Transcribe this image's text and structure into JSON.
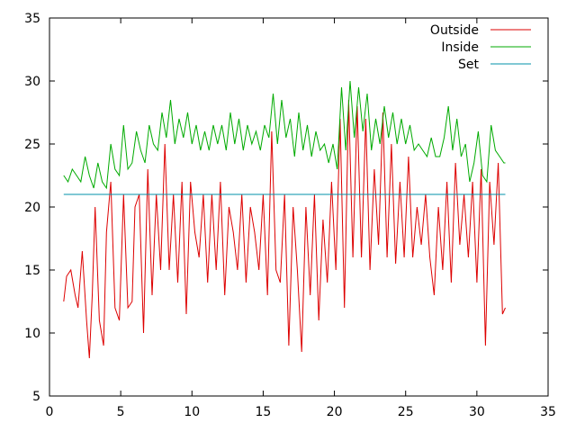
{
  "chart_data": {
    "type": "line",
    "title": "",
    "xlabel": "",
    "ylabel": "",
    "xlim": [
      0,
      35
    ],
    "ylim": [
      5,
      35
    ],
    "xticks": [
      0,
      5,
      10,
      15,
      20,
      25,
      30,
      35
    ],
    "yticks": [
      5,
      10,
      15,
      20,
      25,
      30,
      35
    ],
    "xtick_labels": [
      "0",
      "5",
      "10",
      "15",
      "20",
      "25",
      "30",
      "35"
    ],
    "ytick_labels": [
      "5",
      "10",
      "15",
      "20",
      "25",
      "30",
      "35"
    ],
    "grid": false,
    "legend_position": "top-right",
    "series": [
      {
        "name": "Outside",
        "color": "#dd0000",
        "x": [
          1.0,
          1.2,
          1.5,
          1.8,
          2.0,
          2.3,
          2.6,
          2.8,
          3.0,
          3.2,
          3.5,
          3.8,
          4.0,
          4.3,
          4.6,
          4.9,
          5.2,
          5.5,
          5.8,
          6.0,
          6.3,
          6.6,
          6.9,
          7.2,
          7.5,
          7.8,
          8.1,
          8.4,
          8.7,
          9.0,
          9.3,
          9.6,
          9.9,
          10.2,
          10.5,
          10.8,
          11.1,
          11.4,
          11.7,
          12.0,
          12.3,
          12.6,
          12.9,
          13.2,
          13.5,
          13.8,
          14.1,
          14.4,
          14.7,
          15.0,
          15.3,
          15.6,
          15.9,
          16.2,
          16.5,
          16.8,
          17.1,
          17.4,
          17.7,
          18.0,
          18.3,
          18.6,
          18.9,
          19.2,
          19.5,
          19.8,
          20.1,
          20.4,
          20.7,
          21.0,
          21.3,
          21.6,
          21.9,
          22.2,
          22.5,
          22.8,
          23.1,
          23.4,
          23.7,
          24.0,
          24.3,
          24.6,
          24.9,
          25.2,
          25.5,
          25.8,
          26.1,
          26.4,
          26.7,
          27.0,
          27.3,
          27.6,
          27.9,
          28.2,
          28.5,
          28.8,
          29.1,
          29.4,
          29.7,
          30.0,
          30.3,
          30.6,
          30.9,
          31.2,
          31.5,
          31.8,
          32.0
        ],
        "y": [
          12.5,
          14.5,
          15.0,
          13.0,
          12.0,
          16.5,
          11.0,
          8.0,
          13.0,
          20.0,
          11.0,
          9.0,
          18.0,
          22.0,
          12.0,
          11.0,
          21.0,
          12.0,
          12.5,
          20.0,
          21.0,
          10.0,
          23.0,
          13.0,
          21.0,
          15.0,
          25.0,
          15.0,
          21.0,
          14.0,
          22.0,
          11.5,
          22.0,
          18.0,
          16.0,
          21.0,
          14.0,
          21.0,
          15.0,
          22.0,
          13.0,
          20.0,
          18.0,
          15.0,
          21.0,
          14.0,
          20.0,
          18.0,
          15.0,
          21.0,
          13.0,
          26.0,
          15.0,
          14.0,
          21.0,
          9.0,
          20.0,
          15.0,
          8.5,
          20.0,
          13.0,
          21.0,
          11.0,
          19.0,
          14.0,
          22.0,
          15.0,
          27.0,
          12.0,
          28.5,
          16.0,
          28.0,
          16.0,
          27.0,
          15.0,
          23.0,
          17.0,
          27.5,
          16.0,
          25.0,
          15.5,
          22.0,
          16.0,
          24.0,
          16.0,
          20.0,
          17.0,
          21.0,
          16.0,
          13.0,
          20.0,
          15.0,
          22.0,
          14.0,
          23.5,
          17.0,
          21.0,
          16.0,
          22.0,
          14.0,
          23.0,
          9.0,
          22.0,
          17.0,
          23.5,
          11.5,
          12.0
        ],
        "points": [
          [
            1.0,
            12.5
          ],
          [
            32.0,
            12.0
          ]
        ]
      },
      {
        "name": "Inside",
        "color": "#00aa00",
        "x": [
          1.0,
          1.3,
          1.6,
          1.9,
          2.2,
          2.5,
          2.8,
          3.1,
          3.4,
          3.7,
          4.0,
          4.3,
          4.6,
          4.9,
          5.2,
          5.5,
          5.8,
          6.1,
          6.4,
          6.7,
          7.0,
          7.3,
          7.6,
          7.9,
          8.2,
          8.5,
          8.8,
          9.1,
          9.4,
          9.7,
          10.0,
          10.3,
          10.6,
          10.9,
          11.2,
          11.5,
          11.8,
          12.1,
          12.4,
          12.7,
          13.0,
          13.3,
          13.6,
          13.9,
          14.2,
          14.5,
          14.8,
          15.1,
          15.4,
          15.7,
          16.0,
          16.3,
          16.6,
          16.9,
          17.2,
          17.5,
          17.8,
          18.1,
          18.4,
          18.7,
          19.0,
          19.3,
          19.6,
          19.9,
          20.2,
          20.5,
          20.8,
          21.1,
          21.4,
          21.7,
          22.0,
          22.3,
          22.6,
          22.9,
          23.2,
          23.5,
          23.8,
          24.1,
          24.4,
          24.7,
          25.0,
          25.3,
          25.6,
          25.9,
          26.2,
          26.5,
          26.8,
          27.1,
          27.4,
          27.7,
          28.0,
          28.3,
          28.6,
          28.9,
          29.2,
          29.5,
          29.8,
          30.1,
          30.4,
          30.7,
          31.0,
          31.3,
          31.6,
          31.9,
          32.0
        ],
        "y": [
          22.5,
          22.0,
          23.0,
          22.5,
          22.0,
          24.0,
          22.5,
          21.5,
          23.5,
          22.0,
          21.5,
          25.0,
          23.0,
          22.5,
          26.5,
          23.0,
          23.5,
          26.0,
          24.5,
          23.5,
          26.5,
          25.0,
          24.5,
          27.5,
          25.5,
          28.5,
          25.0,
          27.0,
          25.5,
          27.5,
          25.0,
          26.5,
          24.5,
          26.0,
          24.5,
          26.5,
          25.0,
          26.5,
          24.5,
          27.5,
          25.0,
          27.0,
          24.5,
          26.5,
          25.0,
          26.0,
          24.5,
          26.5,
          25.5,
          29.0,
          25.0,
          28.5,
          25.5,
          27.0,
          24.0,
          27.5,
          24.5,
          26.5,
          24.0,
          26.0,
          24.5,
          25.0,
          23.5,
          25.0,
          23.0,
          29.5,
          24.5,
          30.0,
          25.5,
          29.5,
          26.0,
          29.0,
          24.5,
          27.0,
          25.0,
          28.0,
          25.5,
          27.5,
          25.0,
          27.0,
          25.0,
          26.5,
          24.5,
          25.0,
          24.5,
          24.0,
          25.5,
          24.0,
          24.0,
          25.5,
          28.0,
          24.5,
          27.0,
          24.0,
          25.0,
          22.0,
          23.5,
          26.0,
          22.5,
          22.0,
          26.5,
          24.5,
          24.0,
          23.5,
          23.5
        ],
        "points": [
          [
            1.0,
            22.5
          ],
          [
            32.0,
            23.5
          ]
        ]
      },
      {
        "name": "Set",
        "color": "#0090aa",
        "x": [
          1.0,
          32.0
        ],
        "y": [
          21.0,
          21.0
        ]
      }
    ]
  }
}
